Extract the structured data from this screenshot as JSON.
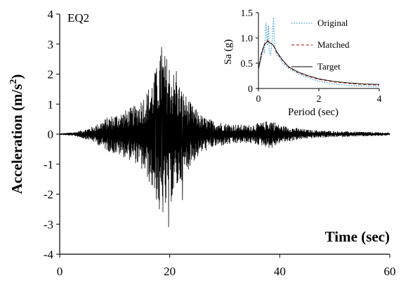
{
  "chart_data": [
    {
      "type": "line",
      "panel_label": "EQ2",
      "xlabel": "Time (sec)",
      "ylabel": "Acceleration (m/s²)",
      "ylabel_base": "Acceleration (m/s",
      "ylabel_sup": "2",
      "ylabel_close": ")",
      "xlim": [
        0,
        60
      ],
      "ylim": [
        -4,
        4
      ],
      "x_ticks": [
        0,
        20,
        40,
        60
      ],
      "y_ticks": [
        -4,
        -3,
        -2,
        -1,
        0,
        1,
        2,
        3,
        4
      ],
      "grid": false,
      "series": [
        {
          "color": "#000000",
          "envelope": [
            [
              0,
              0.02
            ],
            [
              3,
              0.08
            ],
            [
              6,
              0.25
            ],
            [
              9,
              0.6
            ],
            [
              12,
              0.8
            ],
            [
              14,
              1.0
            ],
            [
              16,
              1.5
            ],
            [
              17.5,
              2.2
            ],
            [
              18.5,
              2.8
            ],
            [
              19.5,
              2.6
            ],
            [
              20.5,
              2.2
            ],
            [
              22,
              1.6
            ],
            [
              24,
              1.0
            ],
            [
              26,
              0.6
            ],
            [
              28,
              0.45
            ],
            [
              31,
              0.35
            ],
            [
              34,
              0.3
            ],
            [
              37,
              0.4
            ],
            [
              38.5,
              0.5
            ],
            [
              40,
              0.3
            ],
            [
              45,
              0.15
            ],
            [
              50,
              0.1
            ],
            [
              55,
              0.08
            ],
            [
              60,
              0.05
            ]
          ],
          "peaks": [
            {
              "x": 18.5,
              "y": 2.9
            },
            {
              "x": 19.8,
              "y": -3.1
            },
            {
              "x": 18.1,
              "y": -2.5
            },
            {
              "x": 17.4,
              "y": 2.0
            },
            {
              "x": 21.2,
              "y": 2.1
            },
            {
              "x": 22.3,
              "y": -2.2
            }
          ]
        }
      ]
    },
    {
      "type": "line",
      "xlabel": "Period (sec)",
      "ylabel": "Sa (g)",
      "xlim": [
        0,
        4
      ],
      "ylim": [
        0,
        1.5
      ],
      "x_ticks": [
        0,
        2,
        4
      ],
      "y_ticks": [
        0,
        0.5,
        1.0,
        1.5
      ],
      "y_tick_labels": [
        "0",
        "0.5",
        "1.0",
        "1.5"
      ],
      "legend_position": "top-right",
      "grid": false,
      "series": [
        {
          "name": "Original",
          "color": "#3aa0d8",
          "dash": "dotted",
          "x": [
            0,
            0.1,
            0.15,
            0.2,
            0.25,
            0.3,
            0.33,
            0.36,
            0.4,
            0.45,
            0.5,
            0.53,
            0.58,
            0.65,
            0.8,
            1.0,
            1.3,
            1.6,
            2.0,
            2.5,
            3.0,
            3.5,
            4.0
          ],
          "y": [
            0.38,
            0.6,
            0.8,
            0.7,
            1.3,
            0.85,
            1.25,
            0.75,
            0.65,
            0.9,
            1.4,
            0.9,
            0.7,
            0.65,
            0.5,
            0.4,
            0.3,
            0.22,
            0.14,
            0.09,
            0.06,
            0.05,
            0.04
          ]
        },
        {
          "name": "Matched",
          "color": "#c0392b",
          "dash": "dashed",
          "x": [
            0,
            0.1,
            0.2,
            0.3,
            0.4,
            0.5,
            0.6,
            0.8,
            1.0,
            1.3,
            1.6,
            2.0,
            2.5,
            3.0,
            3.5,
            4.0
          ],
          "y": [
            0.38,
            0.7,
            0.88,
            0.95,
            0.9,
            0.85,
            0.72,
            0.55,
            0.42,
            0.32,
            0.25,
            0.18,
            0.13,
            0.1,
            0.08,
            0.07
          ]
        },
        {
          "name": "Target",
          "color": "#000000",
          "dash": "solid",
          "x": [
            0,
            0.1,
            0.2,
            0.3,
            0.4,
            0.5,
            0.6,
            0.8,
            1.0,
            1.3,
            1.6,
            2.0,
            2.5,
            3.0,
            3.5,
            4.0
          ],
          "y": [
            0.38,
            0.68,
            0.87,
            0.93,
            0.9,
            0.85,
            0.73,
            0.56,
            0.43,
            0.33,
            0.26,
            0.19,
            0.14,
            0.11,
            0.09,
            0.08
          ]
        }
      ]
    }
  ]
}
